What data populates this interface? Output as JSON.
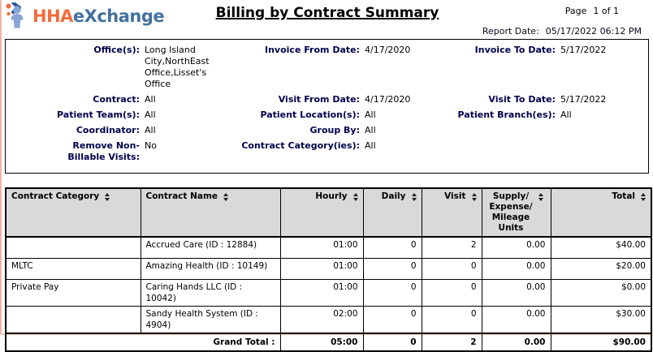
{
  "header": {
    "logo": {
      "text_hha": "HHA",
      "text_exchange": "eXchange"
    },
    "title": "Billing by Contract Summary",
    "page_label": "Page",
    "page_value": "1 of 1",
    "report_date_label": "Report Date:",
    "report_date_value": "05/17/2022 06:12 PM"
  },
  "filters": {
    "rows": [
      {
        "left": {
          "label": "Office(s):",
          "value": "Long Island\nCity,NorthEast\nOffice,Lisset's Office"
        },
        "middle": {
          "label": "Invoice From Date:",
          "value": "4/17/2020"
        },
        "right": {
          "label": "Invoice To Date:",
          "value": "5/17/2022"
        }
      },
      {
        "left": {
          "label": "Contract:",
          "value": "All"
        },
        "middle": {
          "label": "Visit From Date:",
          "value": "4/17/2020"
        },
        "right": {
          "label": "Visit To Date:",
          "value": "5/17/2022"
        }
      },
      {
        "left": {
          "label": "Patient Team(s):",
          "value": "All"
        },
        "middle": {
          "label": "Patient Location(s):",
          "value": "All"
        },
        "right": {
          "label": "Patient Branch(es):",
          "value": "All"
        }
      },
      {
        "left": {
          "label": "Coordinator:",
          "value": "All"
        },
        "middle": {
          "label": "Group By:",
          "value": "All"
        },
        "right": null
      },
      {
        "left": {
          "label": "Remove Non-\nBillable Visits:",
          "value": "No"
        },
        "middle": {
          "label": "Contract Category(ies):",
          "value": "All"
        },
        "right": null
      }
    ]
  },
  "table": {
    "columns": [
      {
        "label": "Contract Category",
        "align": "left",
        "width": 166,
        "sortable": true
      },
      {
        "label": "Contract Name",
        "align": "left",
        "width": 172,
        "sortable": true
      },
      {
        "label": "Hourly",
        "align": "right",
        "width": 102,
        "sortable": true
      },
      {
        "label": "Daily",
        "align": "right",
        "width": 72,
        "sortable": true
      },
      {
        "label": "Visit",
        "align": "right",
        "width": 74,
        "sortable": true
      },
      {
        "label": "Supply/\nExpense/\nMileage\nUnits",
        "align": "center",
        "width": 85,
        "sortable": true
      },
      {
        "label": "Total",
        "align": "right",
        "width": 124,
        "sortable": true
      }
    ],
    "rows": [
      {
        "category": "",
        "name": "Accrued Care (ID : 12884)",
        "hourly": "01:00",
        "daily": "0",
        "visit": "2",
        "supply": "0.00",
        "total": "$40.00"
      },
      {
        "category": "MLTC",
        "name": "Amazing Health (ID : 10149)",
        "hourly": "01:00",
        "daily": "0",
        "visit": "0",
        "supply": "0.00",
        "total": "$20.00"
      },
      {
        "category": "Private Pay",
        "name": "Caring Hands LLC (ID : 10042)",
        "hourly": "01:00",
        "daily": "0",
        "visit": "0",
        "supply": "0.00",
        "total": "$0.00"
      },
      {
        "category": "",
        "name": "Sandy Health System (ID : 4904)",
        "hourly": "02:00",
        "daily": "0",
        "visit": "0",
        "supply": "0.00",
        "total": "$30.00"
      }
    ],
    "grand_total": {
      "label": "Grand Total :",
      "hourly": "05:00",
      "daily": "0",
      "visit": "2",
      "supply": "0.00",
      "total": "$90.00"
    }
  },
  "colors": {
    "logo_orange": "#F26C3C",
    "logo_blue": "#44719F",
    "filter_label": "#00004d",
    "table_header_bg": "#d9d9d9",
    "border": "#000000"
  }
}
